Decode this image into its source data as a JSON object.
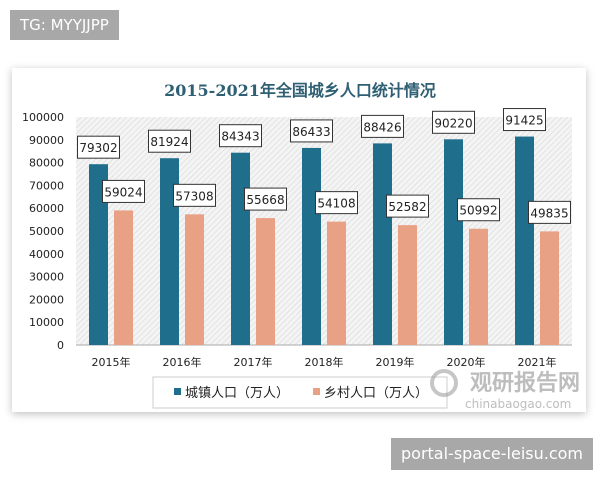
{
  "watermarks": {
    "top_left": "TG: MYYJJPP",
    "bottom_right": "portal-space-leisu.com"
  },
  "logo": {
    "name": "观研报告网",
    "url_text": "chinabaogao.com"
  },
  "colors": {
    "urban": "#1f6e8c",
    "rural": "#e8a184",
    "title": "#2e5f73"
  },
  "chart_data": {
    "type": "bar",
    "title": "2015-2021年全国城乡人口统计情况",
    "categories": [
      "2015年",
      "2016年",
      "2017年",
      "2018年",
      "2019年",
      "2020年",
      "2021年"
    ],
    "series": [
      {
        "name": "城镇人口（万人）",
        "values": [
          79302,
          81924,
          84343,
          86433,
          88426,
          90220,
          91425
        ]
      },
      {
        "name": "乡村人口（万人）",
        "values": [
          59024,
          57308,
          55668,
          54108,
          52582,
          50992,
          49835
        ]
      }
    ],
    "ylim": [
      0,
      100000
    ],
    "yticks": [
      0,
      10000,
      20000,
      30000,
      40000,
      50000,
      60000,
      70000,
      80000,
      90000,
      100000
    ],
    "xlabel": "",
    "ylabel": "",
    "legend": "bottom",
    "grid": false,
    "data_labels": true
  }
}
